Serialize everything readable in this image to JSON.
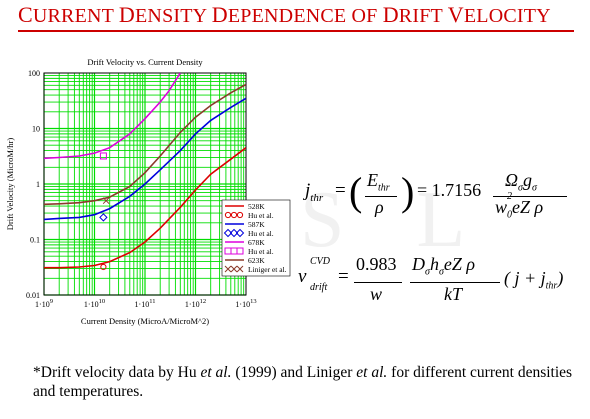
{
  "slide": {
    "title_parts": [
      {
        "cap": "C",
        "rest": "URRENT "
      },
      {
        "cap": "D",
        "rest": "ENSITY "
      },
      {
        "cap": "D",
        "rest": "EPENDENCE OF "
      },
      {
        "cap": "D",
        "rest": "RIFT "
      },
      {
        "cap": "V",
        "rest": "ELOCITY"
      }
    ],
    "watermark": "S L",
    "footnote": {
      "part1": "*Drift velocity data by Hu ",
      "etal1": "et al.",
      "part2": " (1999) and Liniger ",
      "etal2": "et al.",
      "part3": " for different current densities and  temperatures."
    },
    "equation1": {
      "lhs_main": "j",
      "lhs_sub": "thr",
      "equals": "=",
      "num_main": "E",
      "num_sub": "thr",
      "den": "ρ",
      "coeff": "= 1.7156",
      "frac_num": "Ω",
      "frac_num_sub": "σ",
      "frac_num2": "g",
      "frac_num2_sub": "σ",
      "frac_den_w": "w",
      "frac_den_sub": "0",
      "frac_den_sup": "2",
      "frac_den_rest": "eZ ρ"
    },
    "equation2": {
      "lhs_main": "v",
      "lhs_sup": "CVD",
      "lhs_sub": "drift",
      "equals": "=",
      "coef_num": "0.983",
      "coef_den": "w",
      "frac_num": "D",
      "frac_num_sub": "σ",
      "frac_num2": "h",
      "frac_num2_sub": "σ",
      "frac_num3": "eZ ρ",
      "frac_den": "kT",
      "tail": "( j + j",
      "tail_sub": "thr",
      "tail_close": ")"
    }
  },
  "chart_data": {
    "type": "line",
    "title": "Drift Velocity vs. Current Density",
    "xlabel": "Current  Density (MicroA/MicroM^2)",
    "ylabel": "Drift  Velocity  (MicroM/hr)",
    "xscale": "log",
    "yscale": "log",
    "xlim": [
      1000000000,
      10000000000000
    ],
    "ylim": [
      0.01,
      100
    ],
    "grid": true,
    "grid_color": "#00dd00",
    "background": "#ffffff",
    "legend_position": "bottom-right",
    "x_ticks": [
      {
        "value": 1000000000,
        "base": "1·10",
        "exp": "9"
      },
      {
        "value": 10000000000,
        "base": "1·10",
        "exp": "10"
      },
      {
        "value": 100000000000,
        "base": "1·10",
        "exp": "11"
      },
      {
        "value": 1000000000000,
        "base": "1·10",
        "exp": "12"
      },
      {
        "value": 10000000000000,
        "base": "1·10",
        "exp": "13"
      }
    ],
    "y_ticks": [
      {
        "value": 0.01,
        "label": "0.01"
      },
      {
        "value": 0.1,
        "label": "0.1"
      },
      {
        "value": 1,
        "label": "1"
      },
      {
        "value": 10,
        "label": "10"
      },
      {
        "value": 100,
        "label": "100"
      }
    ],
    "series": [
      {
        "name": "528K",
        "kind": "line",
        "color": "#dd0000",
        "x": [
          1000000000,
          2000000000,
          5000000000,
          10000000000,
          20000000000,
          50000000000,
          100000000000,
          200000000000,
          500000000000,
          1000000000000,
          2000000000000,
          5000000000000,
          10000000000000
        ],
        "y": [
          0.031,
          0.031,
          0.032,
          0.034,
          0.04,
          0.058,
          0.09,
          0.16,
          0.38,
          0.78,
          1.5,
          2.8,
          4.5
        ]
      },
      {
        "name": "Hu et al.",
        "kind": "marker",
        "marker": "circle",
        "color": "#dd0000",
        "x": [
          15000000000
        ],
        "y": [
          0.032
        ]
      },
      {
        "name": "587K",
        "kind": "line",
        "color": "#0000dd",
        "x": [
          1000000000,
          2000000000,
          5000000000,
          10000000000,
          20000000000,
          50000000000,
          100000000000,
          200000000000,
          500000000000,
          1000000000000,
          2000000000000,
          5000000000000,
          10000000000000
        ],
        "y": [
          0.23,
          0.24,
          0.25,
          0.28,
          0.36,
          0.6,
          1.0,
          1.8,
          4.0,
          8.0,
          14,
          24,
          35
        ]
      },
      {
        "name": "Hu et al.",
        "kind": "marker",
        "marker": "diamond",
        "color": "#0000dd",
        "x": [
          15000000000
        ],
        "y": [
          0.25
        ]
      },
      {
        "name": "678K",
        "kind": "line",
        "color": "#dd00dd",
        "x": [
          1000000000,
          2000000000,
          5000000000,
          10000000000,
          20000000000,
          50000000000,
          100000000000,
          200000000000,
          300000000000,
          500000000000
        ],
        "y": [
          2.9,
          3.0,
          3.2,
          3.6,
          4.5,
          8.0,
          15,
          30,
          48,
          100
        ]
      },
      {
        "name": "Hu et al.",
        "kind": "marker",
        "marker": "square",
        "color": "#dd00dd",
        "x": [
          15000000000
        ],
        "y": [
          3.2
        ]
      },
      {
        "name": "623K",
        "kind": "line",
        "color": "#8b3a2a",
        "x": [
          1000000000,
          2000000000,
          5000000000,
          10000000000,
          20000000000,
          50000000000,
          100000000000,
          200000000000,
          500000000000,
          1000000000000,
          2000000000000,
          5000000000000,
          10000000000000
        ],
        "y": [
          0.43,
          0.44,
          0.46,
          0.5,
          0.58,
          0.9,
          1.6,
          3.2,
          8.5,
          16,
          26,
          44,
          62
        ]
      },
      {
        "name": "Liniger et al.",
        "kind": "marker",
        "marker": "cross",
        "color": "#8b3a2a",
        "x": [
          17000000000
        ],
        "y": [
          0.5
        ]
      }
    ]
  }
}
